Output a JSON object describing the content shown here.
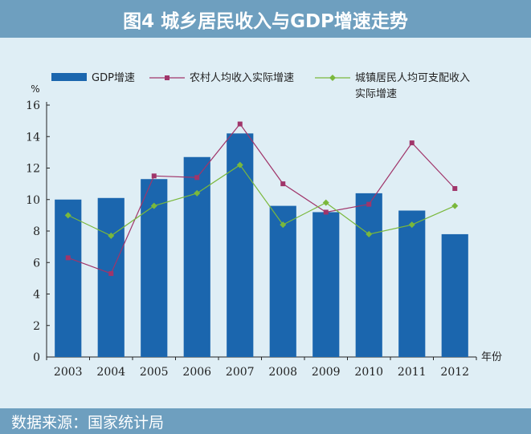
{
  "header": {
    "title": "图4  城乡居民收入与GDP增速走势"
  },
  "footer": {
    "source": "数据来源：国家统计局"
  },
  "chart_data": {
    "type": "bar",
    "categories": [
      "2003",
      "2004",
      "2005",
      "2006",
      "2007",
      "2008",
      "2009",
      "2010",
      "2011",
      "2012"
    ],
    "ylabel": "%",
    "xlabel": "年份",
    "ylim": [
      0,
      16
    ],
    "yticks": [
      "0",
      "2",
      "4",
      "6",
      "8",
      "10",
      "12",
      "14",
      "16"
    ],
    "legend_position": "top",
    "series": [
      {
        "name": "GDP增速",
        "kind": "bar",
        "color": "#1b66ae",
        "values": [
          10.0,
          10.1,
          11.3,
          12.7,
          14.2,
          9.6,
          9.2,
          10.4,
          9.3,
          7.8
        ]
      },
      {
        "name": "农村人均收入实际增速",
        "kind": "line",
        "color": "#a0356a",
        "values": [
          6.3,
          5.3,
          11.5,
          11.4,
          14.8,
          11.0,
          9.2,
          9.7,
          13.6,
          10.7
        ]
      },
      {
        "name": "城镇居民人均可支配收入\n实际增速",
        "kind": "line",
        "color": "#7ab83c",
        "values": [
          9.0,
          7.7,
          9.6,
          10.4,
          12.2,
          8.4,
          9.8,
          7.8,
          8.4,
          9.6
        ]
      }
    ]
  }
}
